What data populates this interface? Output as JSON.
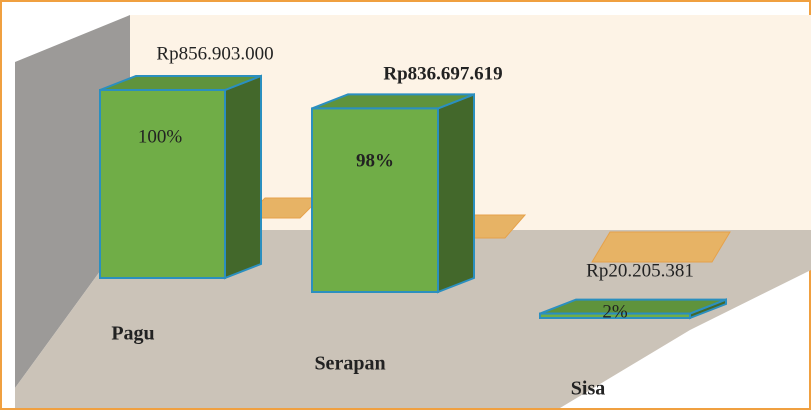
{
  "chart_data": {
    "type": "bar3d",
    "categories": [
      "Pagu",
      "Serapan",
      "Sisa"
    ],
    "values": [
      856903000,
      836697619,
      20205381
    ],
    "value_labels": [
      "Rp856.903.000",
      "Rp836.697.619",
      "Rp20.205.381"
    ],
    "shares": [
      100,
      98,
      2
    ],
    "share_labels": [
      "100%",
      "98%",
      "2%"
    ],
    "color": "#70ad47"
  }
}
